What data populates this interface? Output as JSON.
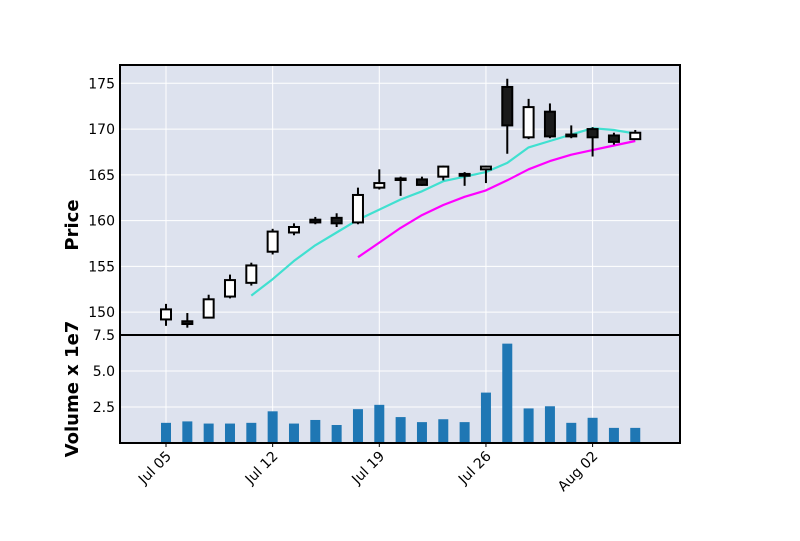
{
  "chart_data": {
    "type": "candlestick",
    "style": {
      "face_color": "#dde2ee",
      "grid_color": "#ffffff",
      "up_fill": "#ffffff",
      "down_fill": "#1a1a1a",
      "edge_color": "#000000",
      "ma_short_color": "#40e0d0",
      "ma_long_color": "#ff00ff",
      "volume_color": "#1f77b4"
    },
    "price_panel": {
      "ylabel": "Price",
      "ylim": [
        147.5,
        177
      ],
      "yticks": [
        150,
        155,
        160,
        165,
        170,
        175
      ],
      "ytick_labels": [
        "150",
        "155",
        "160",
        "165",
        "170",
        "175"
      ]
    },
    "volume_panel": {
      "ylabel": "Volume x 1e7",
      "ylim": [
        0.0,
        7.5
      ],
      "yticks": [
        2.5,
        5.0,
        7.5
      ],
      "ytick_labels": [
        "2.5",
        "5.0",
        "7.5"
      ]
    },
    "x_ticks": [
      {
        "index": 0,
        "label": "Jul 05"
      },
      {
        "index": 5,
        "label": "Jul 12"
      },
      {
        "index": 10,
        "label": "Jul 19"
      },
      {
        "index": 15,
        "label": "Jul 26"
      },
      {
        "index": 20,
        "label": "Aug 02"
      }
    ],
    "candles": [
      {
        "open": 149.2,
        "high": 150.9,
        "low": 148.5,
        "close": 150.3,
        "volume": 1.4
      },
      {
        "open": 149.0,
        "high": 149.9,
        "low": 148.3,
        "close": 148.7,
        "volume": 1.5
      },
      {
        "open": 149.4,
        "high": 151.9,
        "low": 149.3,
        "close": 151.4,
        "volume": 1.35
      },
      {
        "open": 151.7,
        "high": 154.1,
        "low": 151.5,
        "close": 153.5,
        "volume": 1.35
      },
      {
        "open": 153.2,
        "high": 155.4,
        "low": 152.9,
        "close": 155.1,
        "volume": 1.4
      },
      {
        "open": 156.6,
        "high": 159.1,
        "low": 156.3,
        "close": 158.8,
        "volume": 2.2
      },
      {
        "open": 158.7,
        "high": 159.7,
        "low": 158.4,
        "close": 159.3,
        "volume": 1.35
      },
      {
        "open": 160.1,
        "high": 160.4,
        "low": 159.6,
        "close": 159.8,
        "volume": 1.6
      },
      {
        "open": 160.3,
        "high": 160.8,
        "low": 159.3,
        "close": 159.7,
        "volume": 1.25
      },
      {
        "open": 159.8,
        "high": 163.6,
        "low": 159.6,
        "close": 162.8,
        "volume": 2.35
      },
      {
        "open": 163.6,
        "high": 165.6,
        "low": 163.4,
        "close": 164.1,
        "volume": 2.65
      },
      {
        "open": 164.6,
        "high": 164.8,
        "low": 162.7,
        "close": 164.5,
        "volume": 1.8
      },
      {
        "open": 164.5,
        "high": 164.8,
        "low": 163.8,
        "close": 163.9,
        "volume": 1.45
      },
      {
        "open": 164.8,
        "high": 166.0,
        "low": 164.4,
        "close": 165.9,
        "volume": 1.65
      },
      {
        "open": 165.1,
        "high": 165.3,
        "low": 163.8,
        "close": 164.9,
        "volume": 1.45
      },
      {
        "open": 165.6,
        "high": 166.0,
        "low": 164.1,
        "close": 165.9,
        "volume": 3.5
      },
      {
        "open": 174.6,
        "high": 175.5,
        "low": 167.3,
        "close": 170.4,
        "volume": 6.9
      },
      {
        "open": 169.1,
        "high": 173.3,
        "low": 168.9,
        "close": 172.4,
        "volume": 2.4
      },
      {
        "open": 171.9,
        "high": 172.8,
        "low": 169.0,
        "close": 169.2,
        "volume": 2.55
      },
      {
        "open": 169.2,
        "high": 170.4,
        "low": 169.0,
        "close": 169.4,
        "volume": 1.4
      },
      {
        "open": 170.0,
        "high": 170.2,
        "low": 167.0,
        "close": 169.1,
        "volume": 1.75
      },
      {
        "open": 169.3,
        "high": 169.6,
        "low": 168.3,
        "close": 168.6,
        "volume": 1.05
      },
      {
        "open": 168.9,
        "high": 169.9,
        "low": 168.8,
        "close": 169.6,
        "volume": 1.05
      }
    ],
    "ma_short": [
      null,
      null,
      null,
      null,
      151.8,
      153.6,
      155.6,
      157.3,
      158.7,
      160.1,
      161.2,
      162.3,
      163.2,
      164.3,
      164.8,
      165.3,
      166.3,
      168.0,
      168.7,
      169.4,
      170.1,
      169.9,
      169.5
    ],
    "ma_long": [
      null,
      null,
      null,
      null,
      null,
      null,
      null,
      null,
      null,
      156.0,
      157.6,
      159.2,
      160.6,
      161.7,
      162.6,
      163.3,
      164.4,
      165.6,
      166.5,
      167.2,
      167.7,
      168.2,
      168.7
    ]
  }
}
